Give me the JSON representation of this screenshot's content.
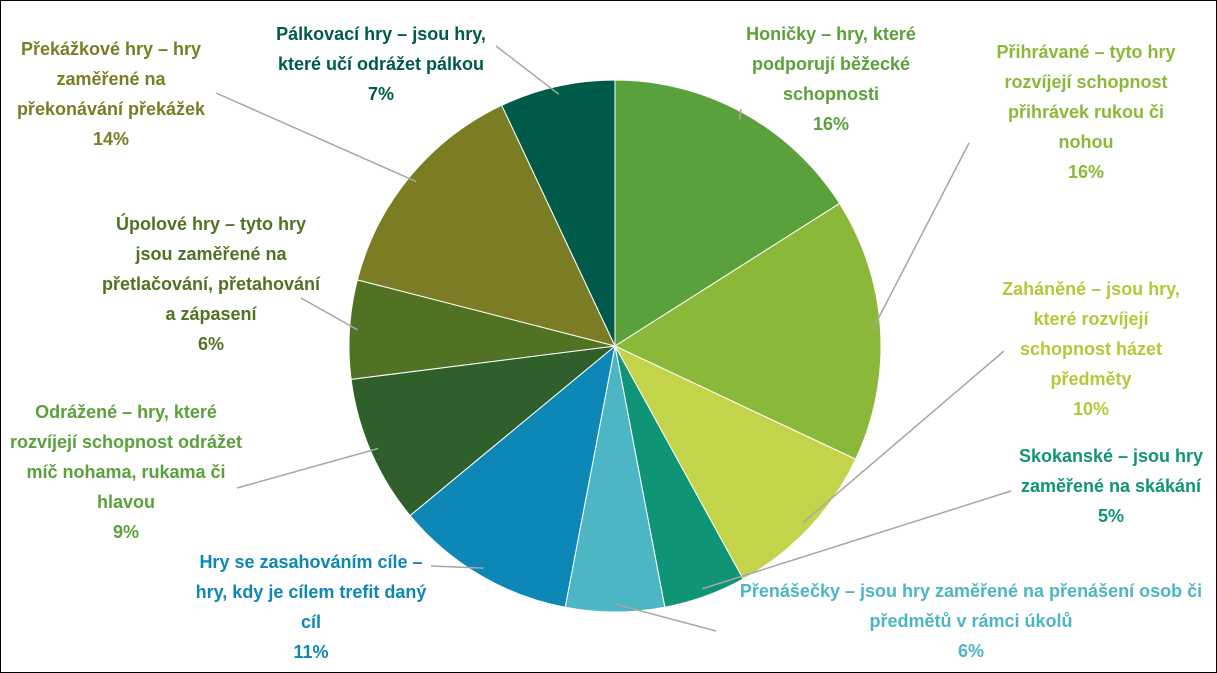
{
  "chart_data": {
    "type": "pie",
    "categories": [
      "Honičky – hry, které podporují běžecké schopnosti",
      "Přihrávané – tyto hry rozvíjejí schopnost přihrávek rukou či nohou",
      "Zaháněné – jsou hry, které rozvíjejí schopnost házet předměty",
      "Skokanské – jsou hry zaměřené na skákání",
      "Přenášečky – jsou hry zaměřené na přenášení osob či předmětů v rámci úkolů",
      "Hry se zasahováním cíle – hry, kdy je cílem trefit daný cíl",
      "Odrážené – hry, které rozvíjejí schopnost odrážet míč nohama, rukama či hlavou",
      "Úpolové hry – tyto hry jsou zaměřené na přetlačování, přetahování a zápasení",
      "Překážkové hry – hry zaměřené na překonávání překážek",
      "Pálkovací hry – jsou hry, které učí odrážet pálkou"
    ],
    "values": [
      16,
      16,
      10,
      5,
      6,
      11,
      9,
      6,
      14,
      7
    ],
    "value_labels": [
      "16%",
      "16%",
      "10%",
      "5%",
      "6%",
      "11%",
      "9%",
      "6%",
      "14%",
      "7%"
    ],
    "colors": [
      "#5aa13b",
      "#8cb83a",
      "#c4d44a",
      "#0f9575",
      "#4db6c4",
      "#0d87b5",
      "#2f5f2a",
      "#527223",
      "#7a7d24",
      "#005a4a"
    ],
    "label_colors": [
      "#5aa13b",
      "#8cb83a",
      "#b5c83a",
      "#0f9575",
      "#4db6c4",
      "#0d87b5",
      "#5aa13b",
      "#527223",
      "#7a7d24",
      "#005a4a"
    ]
  }
}
